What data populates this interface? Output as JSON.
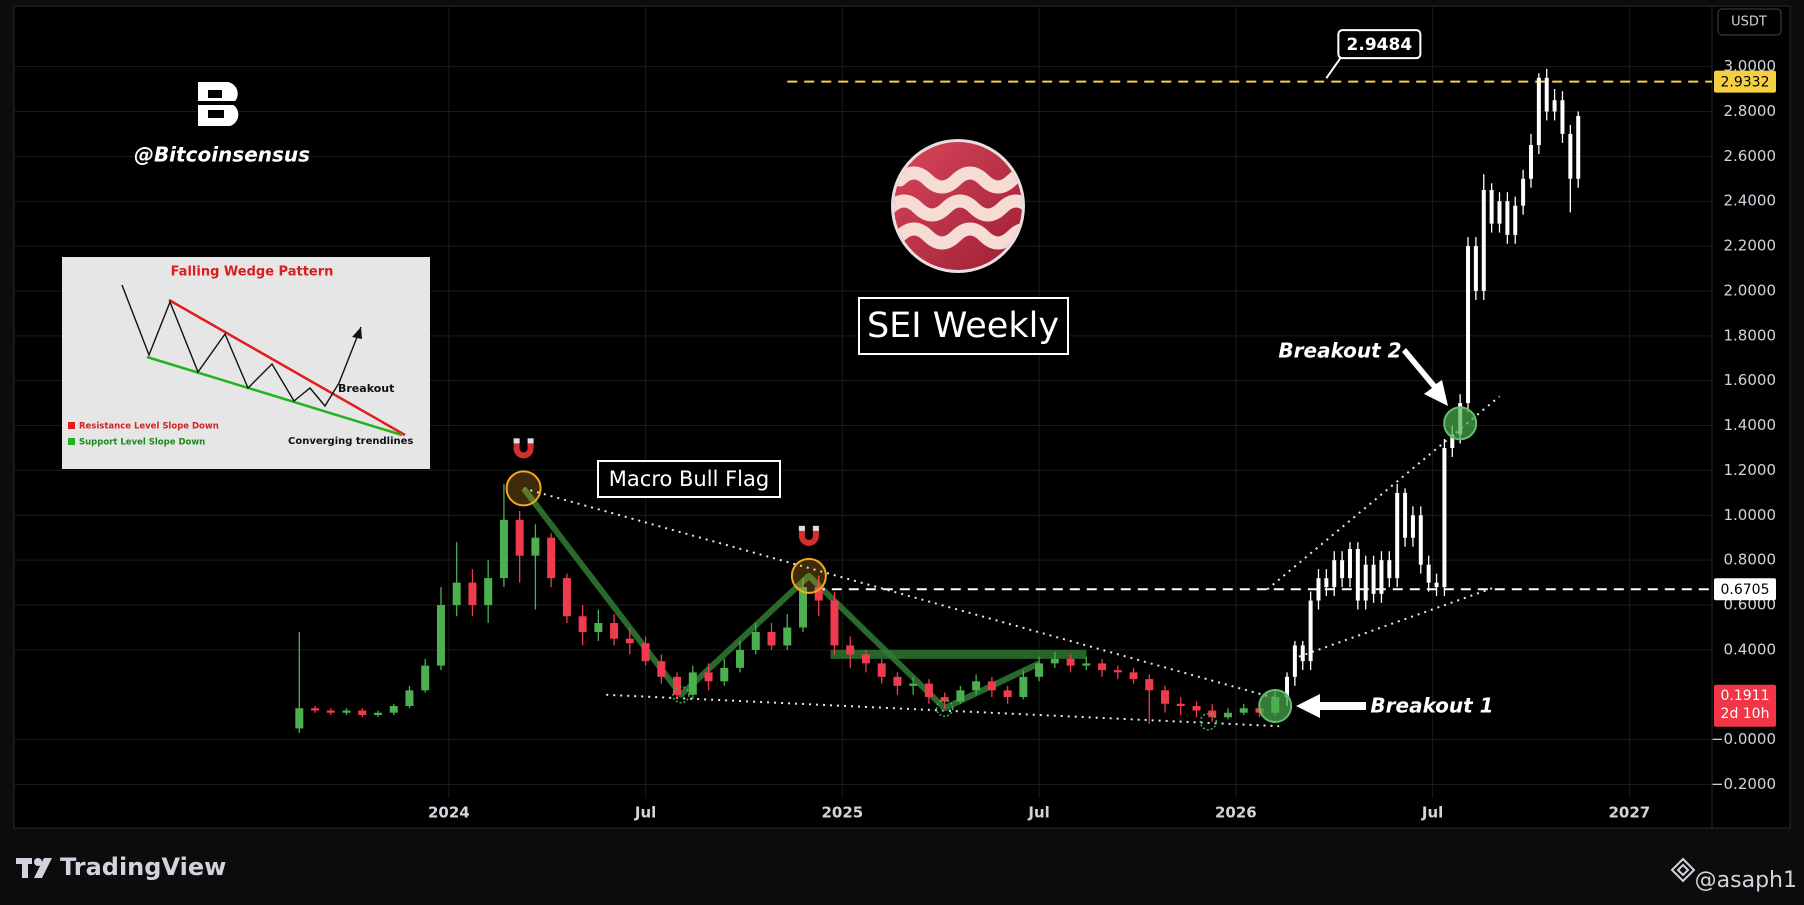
{
  "chart_data": {
    "type": "candlestick",
    "currency": "USDT",
    "xlim": [
      2022.895,
      2027.21
    ],
    "xticks": [
      2024,
      {
        "value": 2024.5,
        "label": "Jul"
      },
      2025,
      {
        "value": 2025.5,
        "label": "Jul"
      },
      2026,
      {
        "value": 2026.5,
        "label": "Jul"
      },
      2027
    ],
    "ylim": [
      -0.26,
      3.27
    ],
    "yticks": [
      {
        "value": -0.2,
        "label": "−0.2000"
      },
      {
        "value": 0,
        "label": "−0.0000"
      },
      {
        "value": 0.4,
        "label": "0.4000"
      },
      {
        "value": 0.6,
        "label": "0.6000"
      },
      {
        "value": 0.8,
        "label": "0.8000"
      },
      {
        "value": 1.0,
        "label": "1.0000"
      },
      {
        "value": 1.2,
        "label": "1.2000"
      },
      {
        "value": 1.4,
        "label": "1.4000"
      },
      {
        "value": 1.6,
        "label": "1.6000"
      },
      {
        "value": 1.8,
        "label": "1.8000"
      },
      {
        "value": 2.0,
        "label": "2.0000"
      },
      {
        "value": 2.2,
        "label": "2.2000"
      },
      {
        "value": 2.4,
        "label": "2.4000"
      },
      {
        "value": 2.6,
        "label": "2.6000"
      },
      {
        "value": 2.8,
        "label": "2.8000"
      },
      {
        "value": 3.0,
        "label": "3.0000"
      }
    ],
    "grid": true,
    "candles": {
      "up_color": "#4caf50",
      "down_color": "#ef3b4f",
      "x": [
        2023.62,
        2023.66,
        2023.7,
        2023.74,
        2023.78,
        2023.82,
        2023.86,
        2023.9,
        2023.94,
        2023.98,
        2024.02,
        2024.06,
        2024.1,
        2024.14,
        2024.18,
        2024.22,
        2024.26,
        2024.3,
        2024.34,
        2024.38,
        2024.42,
        2024.46,
        2024.5,
        2024.54,
        2024.58,
        2024.62,
        2024.66,
        2024.7,
        2024.74,
        2024.78,
        2024.82,
        2024.86,
        2024.9,
        2024.94,
        2024.98,
        2025.02,
        2025.06,
        2025.1,
        2025.14,
        2025.18,
        2025.22,
        2025.26,
        2025.3,
        2025.34,
        2025.38,
        2025.42,
        2025.46,
        2025.5,
        2025.54,
        2025.58,
        2025.62,
        2025.66,
        2025.7,
        2025.74,
        2025.78,
        2025.82,
        2025.86,
        2025.9,
        2025.94,
        2025.98,
        2026.02,
        2026.06,
        2026.1
      ],
      "open": [
        0.05,
        0.14,
        0.13,
        0.12,
        0.13,
        0.11,
        0.12,
        0.15,
        0.22,
        0.33,
        0.6,
        0.7,
        0.6,
        0.72,
        0.98,
        0.82,
        0.9,
        0.72,
        0.55,
        0.48,
        0.52,
        0.45,
        0.43,
        0.35,
        0.28,
        0.2,
        0.3,
        0.26,
        0.32,
        0.4,
        0.48,
        0.42,
        0.5,
        0.68,
        0.62,
        0.42,
        0.38,
        0.34,
        0.28,
        0.24,
        0.25,
        0.19,
        0.17,
        0.22,
        0.26,
        0.22,
        0.19,
        0.28,
        0.34,
        0.36,
        0.33,
        0.34,
        0.31,
        0.3,
        0.27,
        0.22,
        0.16,
        0.15,
        0.13,
        0.1,
        0.12,
        0.14,
        0.12
      ],
      "high": [
        0.48,
        0.15,
        0.14,
        0.14,
        0.14,
        0.13,
        0.16,
        0.24,
        0.36,
        0.68,
        0.88,
        0.76,
        0.8,
        1.14,
        1.02,
        0.96,
        0.92,
        0.74,
        0.6,
        0.58,
        0.56,
        0.5,
        0.46,
        0.38,
        0.3,
        0.33,
        0.34,
        0.36,
        0.44,
        0.52,
        0.52,
        0.56,
        0.72,
        0.73,
        0.66,
        0.46,
        0.4,
        0.36,
        0.3,
        0.28,
        0.27,
        0.21,
        0.24,
        0.29,
        0.28,
        0.24,
        0.31,
        0.37,
        0.39,
        0.38,
        0.37,
        0.36,
        0.33,
        0.32,
        0.29,
        0.24,
        0.19,
        0.17,
        0.16,
        0.14,
        0.16,
        0.16,
        0.22
      ],
      "low": [
        0.03,
        0.12,
        0.11,
        0.11,
        0.1,
        0.1,
        0.11,
        0.14,
        0.21,
        0.31,
        0.55,
        0.55,
        0.52,
        0.68,
        0.7,
        0.58,
        0.68,
        0.52,
        0.42,
        0.44,
        0.42,
        0.38,
        0.33,
        0.25,
        0.18,
        0.18,
        0.22,
        0.24,
        0.3,
        0.38,
        0.4,
        0.4,
        0.48,
        0.55,
        0.38,
        0.32,
        0.3,
        0.25,
        0.2,
        0.2,
        0.16,
        0.14,
        0.16,
        0.2,
        0.19,
        0.16,
        0.18,
        0.26,
        0.32,
        0.3,
        0.31,
        0.28,
        0.27,
        0.25,
        0.07,
        0.12,
        0.11,
        0.1,
        0.08,
        0.09,
        0.11,
        0.1,
        0.11
      ],
      "close": [
        0.14,
        0.13,
        0.12,
        0.13,
        0.11,
        0.12,
        0.15,
        0.22,
        0.33,
        0.6,
        0.7,
        0.6,
        0.72,
        0.98,
        0.82,
        0.9,
        0.72,
        0.55,
        0.48,
        0.52,
        0.45,
        0.43,
        0.35,
        0.28,
        0.2,
        0.3,
        0.26,
        0.32,
        0.4,
        0.48,
        0.42,
        0.5,
        0.68,
        0.62,
        0.42,
        0.38,
        0.34,
        0.28,
        0.24,
        0.25,
        0.19,
        0.17,
        0.22,
        0.26,
        0.22,
        0.19,
        0.28,
        0.34,
        0.36,
        0.33,
        0.34,
        0.31,
        0.3,
        0.27,
        0.22,
        0.16,
        0.15,
        0.13,
        0.1,
        0.12,
        0.14,
        0.12,
        0.19
      ]
    },
    "projection": {
      "color": "#ffffff",
      "x": [
        2026.13,
        2026.15,
        2026.17,
        2026.19,
        2026.21,
        2026.23,
        2026.25,
        2026.27,
        2026.29,
        2026.31,
        2026.33,
        2026.35,
        2026.37,
        2026.39,
        2026.41,
        2026.43,
        2026.45,
        2026.47,
        2026.49,
        2026.51,
        2026.53,
        2026.55,
        2026.57,
        2026.59,
        2026.61,
        2026.63,
        2026.65,
        2026.67,
        2026.69,
        2026.71,
        2026.73,
        2026.75,
        2026.77,
        2026.79,
        2026.81,
        2026.83,
        2026.85,
        2026.87
      ],
      "open": [
        0.19,
        0.28,
        0.42,
        0.35,
        0.62,
        0.72,
        0.68,
        0.8,
        0.72,
        0.85,
        0.62,
        0.78,
        0.65,
        0.8,
        0.72,
        1.1,
        0.9,
        1.0,
        0.78,
        0.7,
        0.68,
        1.3,
        1.36,
        1.5,
        2.2,
        2.0,
        2.45,
        2.3,
        2.4,
        2.25,
        2.38,
        2.5,
        2.65,
        2.95,
        2.8,
        2.85,
        2.7,
        2.5
      ],
      "high": [
        0.3,
        0.44,
        0.44,
        0.66,
        0.76,
        0.76,
        0.84,
        0.84,
        0.88,
        0.88,
        0.82,
        0.82,
        0.84,
        0.84,
        1.14,
        1.12,
        1.04,
        1.04,
        0.82,
        0.74,
        1.34,
        1.4,
        1.54,
        2.24,
        2.24,
        2.52,
        2.48,
        2.44,
        2.44,
        2.42,
        2.54,
        2.7,
        2.97,
        2.99,
        2.9,
        2.89,
        2.74,
        2.8
      ],
      "low": [
        0.15,
        0.24,
        0.31,
        0.31,
        0.58,
        0.64,
        0.64,
        0.68,
        0.68,
        0.58,
        0.58,
        0.61,
        0.61,
        0.68,
        0.68,
        0.86,
        0.86,
        0.74,
        0.66,
        0.64,
        0.64,
        1.26,
        1.32,
        1.46,
        1.96,
        1.96,
        2.26,
        2.26,
        2.21,
        2.21,
        2.34,
        2.46,
        2.61,
        2.76,
        2.76,
        2.66,
        2.35,
        2.46
      ],
      "close": [
        0.28,
        0.42,
        0.35,
        0.62,
        0.72,
        0.68,
        0.8,
        0.72,
        0.85,
        0.62,
        0.78,
        0.65,
        0.8,
        0.72,
        1.1,
        0.9,
        1.0,
        0.78,
        0.7,
        0.68,
        1.3,
        1.36,
        1.5,
        2.2,
        2.0,
        2.45,
        2.3,
        2.4,
        2.25,
        2.38,
        2.5,
        2.65,
        2.95,
        2.8,
        2.85,
        2.7,
        2.5,
        2.78
      ]
    },
    "price_lines": [
      {
        "value": 2.9332,
        "from": 2024.86,
        "color": "#f5d142",
        "text_color": "#000000"
      },
      {
        "value": 0.6705,
        "from": 2024.93,
        "color": "#ffffff",
        "text_color": "#000000"
      }
    ],
    "last_price": {
      "value": 0.1911,
      "countdown": "2d 10h",
      "color": "#f23645"
    },
    "callout": {
      "value": 2.9484,
      "x": 2026.23
    },
    "trendlines": [
      {
        "points": [
          [
            2024.19,
            1.12
          ],
          [
            2026.11,
            0.18
          ]
        ]
      },
      {
        "points": [
          [
            2024.4,
            0.2
          ],
          [
            2026.11,
            0.06
          ]
        ]
      },
      {
        "points": [
          [
            2026.08,
            0.67
          ],
          [
            2026.67,
            1.53
          ]
        ]
      },
      {
        "points": [
          [
            2026.16,
            0.37
          ],
          [
            2026.66,
            0.68
          ]
        ]
      }
    ],
    "flag_path": {
      "color": "#2f7d32",
      "points": [
        [
          2024.19,
          1.12
        ],
        [
          2024.59,
          0.2
        ],
        [
          2024.915,
          0.73
        ],
        [
          2025.26,
          0.14
        ],
        [
          2025.5,
          0.34
        ]
      ]
    },
    "flag_band": {
      "color": "#2f7d32",
      "points": [
        [
          2024.97,
          0.38
        ],
        [
          2025.62,
          0.38
        ]
      ]
    },
    "magnet_points": [
      [
        2024.19,
        1.12
      ],
      [
        2024.915,
        0.73
      ]
    ],
    "touch_points": [
      [
        2024.59,
        0.2
      ],
      [
        2025.26,
        0.14
      ],
      [
        2025.93,
        0.08
      ]
    ],
    "breakout_points": [
      [
        2026.1,
        0.15
      ],
      [
        2026.57,
        1.41
      ]
    ],
    "annotations": {
      "pattern": "Macro Bull Flag",
      "title": "SEI Weekly",
      "breakout_1": "Breakout 1",
      "breakout_2": "Breakout 2"
    }
  },
  "watermark": {
    "handle": "@Bitcoinsensus"
  },
  "inset": {
    "title": "Falling Wedge Pattern",
    "breakout": "Breakout",
    "resistance": "Resistance Level Slope Down",
    "support": "Support Level Slope Down",
    "converging": "Converging trendlines"
  },
  "footer": {
    "brand": "TradingView",
    "author": "@asaph1"
  }
}
